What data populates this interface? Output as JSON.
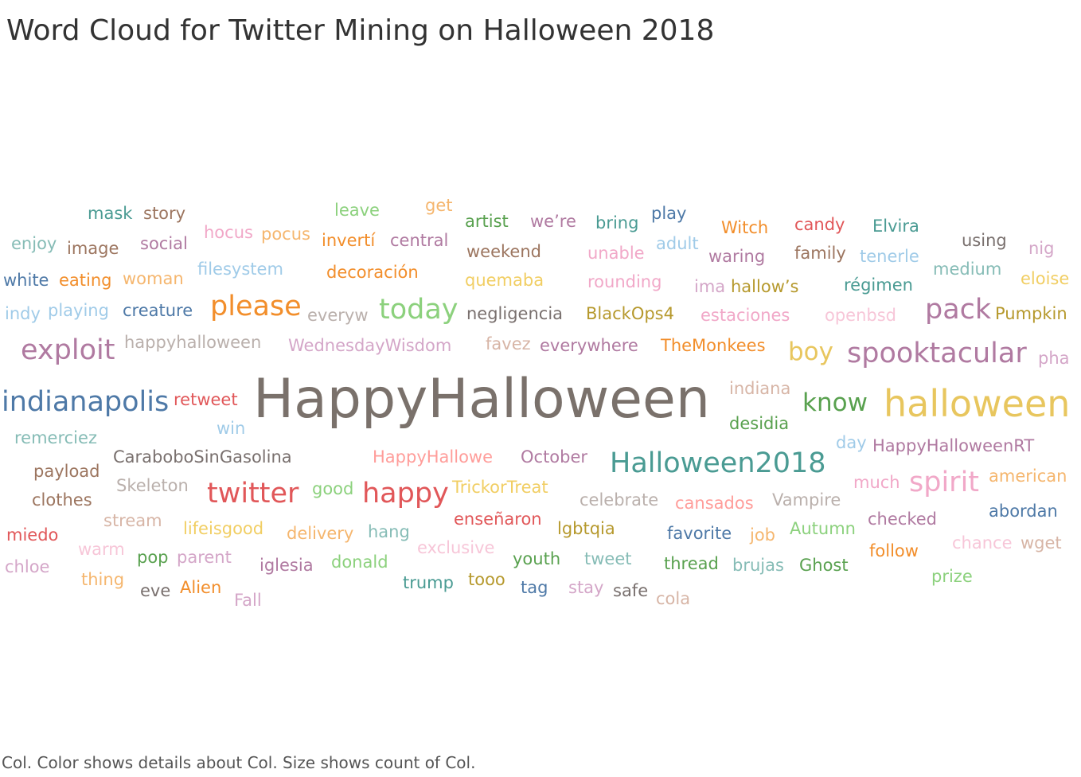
{
  "title": "Word Cloud for Twitter Mining on Halloween 2018",
  "caption": "Col.  Color shows details about Col.  Size shows count of Col.",
  "chart_data": {
    "type": "wordcloud",
    "title": "Word Cloud for Twitter Mining on Halloween 2018",
    "size_measure": "count of Col",
    "color_measure": "Col",
    "words": [
      {
        "text": "HappyHalloween",
        "count": 100,
        "color": "#7a716b"
      },
      {
        "text": "halloween",
        "count": 38,
        "color": "#e8c65e"
      },
      {
        "text": "Halloween2018",
        "count": 30,
        "color": "#4a9b93"
      },
      {
        "text": "indianapolis",
        "count": 29,
        "color": "#4e79a7"
      },
      {
        "text": "spooktacular",
        "count": 29,
        "color": "#b07aa1"
      },
      {
        "text": "twitter",
        "count": 28,
        "color": "#e15759"
      },
      {
        "text": "happy",
        "count": 28,
        "color": "#e15759"
      },
      {
        "text": "today",
        "count": 28,
        "color": "#8cd17d"
      },
      {
        "text": "exploit",
        "count": 28,
        "color": "#b07aa1"
      },
      {
        "text": "please",
        "count": 27,
        "color": "#f28e2b"
      },
      {
        "text": "pack",
        "count": 27,
        "color": "#b07aa1"
      },
      {
        "text": "spirit",
        "count": 26,
        "color": "#f1a8c8"
      },
      {
        "text": "boy",
        "count": 26,
        "color": "#e8c65e"
      },
      {
        "text": "know",
        "count": 26,
        "color": "#59a14f"
      },
      {
        "text": "mask",
        "count": 15,
        "color": "#4a9b93"
      },
      {
        "text": "story",
        "count": 15,
        "color": "#9c755f"
      },
      {
        "text": "leave",
        "count": 15,
        "color": "#8cd17d"
      },
      {
        "text": "get",
        "count": 15,
        "color": "#f5b66e"
      },
      {
        "text": "artist",
        "count": 15,
        "color": "#59a14f"
      },
      {
        "text": "we’re",
        "count": 15,
        "color": "#b07aa1"
      },
      {
        "text": "bring",
        "count": 15,
        "color": "#4a9b93"
      },
      {
        "text": "play",
        "count": 15,
        "color": "#4e79a7"
      },
      {
        "text": "Witch",
        "count": 15,
        "color": "#f28e2b"
      },
      {
        "text": "candy",
        "count": 15,
        "color": "#e15759"
      },
      {
        "text": "Elvira",
        "count": 15,
        "color": "#4a9b93"
      },
      {
        "text": "enjoy",
        "count": 15,
        "color": "#86bcb6"
      },
      {
        "text": "image",
        "count": 15,
        "color": "#9c755f"
      },
      {
        "text": "social",
        "count": 15,
        "color": "#b07aa1"
      },
      {
        "text": "hocus",
        "count": 15,
        "color": "#f1a8c8"
      },
      {
        "text": "pocus",
        "count": 15,
        "color": "#f5b66e"
      },
      {
        "text": "invertí",
        "count": 15,
        "color": "#f28e2b"
      },
      {
        "text": "central",
        "count": 15,
        "color": "#b07aa1"
      },
      {
        "text": "weekend",
        "count": 15,
        "color": "#9c755f"
      },
      {
        "text": "unable",
        "count": 15,
        "color": "#f1a8c8"
      },
      {
        "text": "adult",
        "count": 15,
        "color": "#a0cbe8"
      },
      {
        "text": "waring",
        "count": 15,
        "color": "#b07aa1"
      },
      {
        "text": "family",
        "count": 15,
        "color": "#9c755f"
      },
      {
        "text": "tenerle",
        "count": 15,
        "color": "#a0cbe8"
      },
      {
        "text": "using",
        "count": 15,
        "color": "#79706e"
      },
      {
        "text": "nig",
        "count": 15,
        "color": "#d4a6c8"
      },
      {
        "text": "white",
        "count": 15,
        "color": "#4e79a7"
      },
      {
        "text": "eating",
        "count": 15,
        "color": "#f28e2b"
      },
      {
        "text": "woman",
        "count": 15,
        "color": "#f5b66e"
      },
      {
        "text": "filesystem",
        "count": 15,
        "color": "#a0cbe8"
      },
      {
        "text": "decoración",
        "count": 15,
        "color": "#f28e2b"
      },
      {
        "text": "quemaba",
        "count": 15,
        "color": "#f1ce63"
      },
      {
        "text": "rounding",
        "count": 15,
        "color": "#f1a8c8"
      },
      {
        "text": "ima",
        "count": 15,
        "color": "#d4a6c8"
      },
      {
        "text": "hallow’s",
        "count": 15,
        "color": "#b6992d"
      },
      {
        "text": "régimen",
        "count": 15,
        "color": "#4a9b93"
      },
      {
        "text": "medium",
        "count": 15,
        "color": "#86bcb6"
      },
      {
        "text": "eloise",
        "count": 15,
        "color": "#f1ce63"
      },
      {
        "text": "indy",
        "count": 15,
        "color": "#a0cbe8"
      },
      {
        "text": "playing",
        "count": 15,
        "color": "#a0cbe8"
      },
      {
        "text": "creature",
        "count": 15,
        "color": "#4e79a7"
      },
      {
        "text": "everyw",
        "count": 15,
        "color": "#bab0ac"
      },
      {
        "text": "negligencia",
        "count": 15,
        "color": "#79706e"
      },
      {
        "text": "BlackOps4",
        "count": 15,
        "color": "#b6992d"
      },
      {
        "text": "estaciones",
        "count": 15,
        "color": "#f1a8c8"
      },
      {
        "text": "openbsd",
        "count": 15,
        "color": "#f7c6d8"
      },
      {
        "text": "Pumpkin",
        "count": 15,
        "color": "#b6992d"
      },
      {
        "text": "happyhalloween",
        "count": 15,
        "color": "#bab0ac"
      },
      {
        "text": "WednesdayWisdom",
        "count": 15,
        "color": "#d4a6c8"
      },
      {
        "text": "favez",
        "count": 15,
        "color": "#d7b5a6"
      },
      {
        "text": "everywhere",
        "count": 15,
        "color": "#b07aa1"
      },
      {
        "text": "TheMonkees",
        "count": 15,
        "color": "#f28e2b"
      },
      {
        "text": "pha",
        "count": 15,
        "color": "#d4a6c8"
      },
      {
        "text": "retweet",
        "count": 15,
        "color": "#e15759"
      },
      {
        "text": "indiana",
        "count": 15,
        "color": "#d7b5a6"
      },
      {
        "text": "desidia",
        "count": 15,
        "color": "#59a14f"
      },
      {
        "text": "remerciez",
        "count": 15,
        "color": "#86bcb6"
      },
      {
        "text": "win",
        "count": 15,
        "color": "#a0cbe8"
      },
      {
        "text": "day",
        "count": 15,
        "color": "#a0cbe8"
      },
      {
        "text": "HappyHalloweenRT",
        "count": 15,
        "color": "#b07aa1"
      },
      {
        "text": "payload",
        "count": 15,
        "color": "#9c755f"
      },
      {
        "text": "CaraboboSinGasolina",
        "count": 15,
        "color": "#79706e"
      },
      {
        "text": "HappyHallowe",
        "count": 15,
        "color": "#ff9d9a"
      },
      {
        "text": "October",
        "count": 15,
        "color": "#b07aa1"
      },
      {
        "text": "much",
        "count": 15,
        "color": "#f1a8c8"
      },
      {
        "text": "american",
        "count": 15,
        "color": "#f5b66e"
      },
      {
        "text": "Skeleton",
        "count": 15,
        "color": "#bab0ac"
      },
      {
        "text": "good",
        "count": 15,
        "color": "#8cd17d"
      },
      {
        "text": "TrickorTreat",
        "count": 15,
        "color": "#f1ce63"
      },
      {
        "text": "celebrate",
        "count": 15,
        "color": "#bab0ac"
      },
      {
        "text": "cansados",
        "count": 15,
        "color": "#ff9d9a"
      },
      {
        "text": "Vampire",
        "count": 15,
        "color": "#bab0ac"
      },
      {
        "text": "clothes",
        "count": 15,
        "color": "#9c755f"
      },
      {
        "text": "abordan",
        "count": 15,
        "color": "#4e79a7"
      },
      {
        "text": "stream",
        "count": 15,
        "color": "#d7b5a6"
      },
      {
        "text": "lifeisgood",
        "count": 15,
        "color": "#f1ce63"
      },
      {
        "text": "enseñaron",
        "count": 15,
        "color": "#e15759"
      },
      {
        "text": "lgbtqia",
        "count": 15,
        "color": "#b6992d"
      },
      {
        "text": "favorite",
        "count": 15,
        "color": "#4e79a7"
      },
      {
        "text": "job",
        "count": 15,
        "color": "#f5b66e"
      },
      {
        "text": "Autumn",
        "count": 15,
        "color": "#8cd17d"
      },
      {
        "text": "checked",
        "count": 15,
        "color": "#b07aa1"
      },
      {
        "text": "miedo",
        "count": 15,
        "color": "#e15759"
      },
      {
        "text": "delivery",
        "count": 15,
        "color": "#f5b66e"
      },
      {
        "text": "hang",
        "count": 15,
        "color": "#86bcb6"
      },
      {
        "text": "chance",
        "count": 15,
        "color": "#f7c6d8"
      },
      {
        "text": "wget",
        "count": 15,
        "color": "#d7b5a6"
      },
      {
        "text": "warm",
        "count": 15,
        "color": "#f7c6d8"
      },
      {
        "text": "exclusive",
        "count": 15,
        "color": "#f7c6d8"
      },
      {
        "text": "follow",
        "count": 15,
        "color": "#f28e2b"
      },
      {
        "text": "pop",
        "count": 15,
        "color": "#59a14f"
      },
      {
        "text": "parent",
        "count": 15,
        "color": "#d4a6c8"
      },
      {
        "text": "chloe",
        "count": 15,
        "color": "#d4a6c8"
      },
      {
        "text": "iglesia",
        "count": 15,
        "color": "#b07aa1"
      },
      {
        "text": "donald",
        "count": 15,
        "color": "#8cd17d"
      },
      {
        "text": "youth",
        "count": 15,
        "color": "#59a14f"
      },
      {
        "text": "tweet",
        "count": 15,
        "color": "#86bcb6"
      },
      {
        "text": "thread",
        "count": 15,
        "color": "#59a14f"
      },
      {
        "text": "brujas",
        "count": 15,
        "color": "#86bcb6"
      },
      {
        "text": "Ghost",
        "count": 15,
        "color": "#59a14f"
      },
      {
        "text": "prize",
        "count": 15,
        "color": "#8cd17d"
      },
      {
        "text": "thing",
        "count": 15,
        "color": "#f5b66e"
      },
      {
        "text": "trump",
        "count": 15,
        "color": "#4a9b93"
      },
      {
        "text": "tooo",
        "count": 15,
        "color": "#b6992d"
      },
      {
        "text": "tag",
        "count": 15,
        "color": "#4e79a7"
      },
      {
        "text": "stay",
        "count": 15,
        "color": "#d4a6c8"
      },
      {
        "text": "safe",
        "count": 15,
        "color": "#79706e"
      },
      {
        "text": "eve",
        "count": 15,
        "color": "#79706e"
      },
      {
        "text": "Alien",
        "count": 15,
        "color": "#f28e2b"
      },
      {
        "text": "cola",
        "count": 15,
        "color": "#d7b5a6"
      },
      {
        "text": "Fall",
        "count": 15,
        "color": "#d4a6c8"
      }
    ]
  }
}
